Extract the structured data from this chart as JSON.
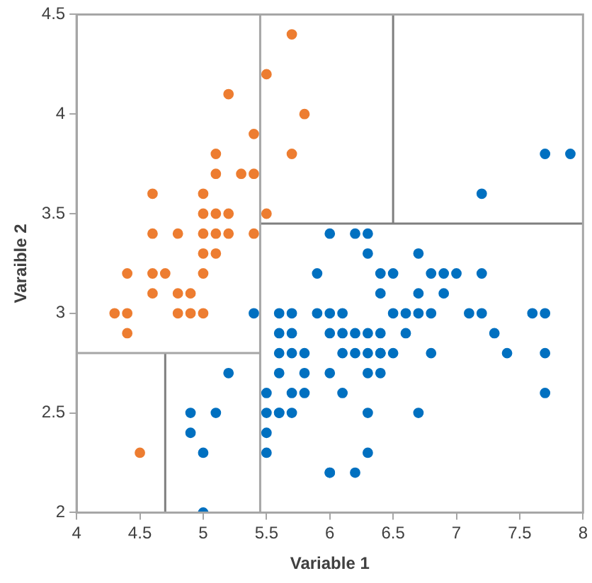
{
  "chart_data": {
    "type": "scatter",
    "xlabel": "Variable 1",
    "ylabel": "Varaible 2",
    "xlim": [
      4,
      8
    ],
    "ylim": [
      2,
      4.5
    ],
    "xticks": [
      4,
      4.5,
      5,
      5.5,
      6,
      6.5,
      7,
      7.5,
      8
    ],
    "yticks": [
      2,
      2.5,
      3,
      3.5,
      4,
      4.5
    ],
    "marker": "circle",
    "legend": false,
    "series": [
      {
        "color": "#ed7d31",
        "x": [
          4.3,
          4.4,
          4.4,
          4.4,
          4.5,
          4.6,
          4.6,
          4.6,
          4.6,
          4.7,
          4.8,
          4.8,
          4.8,
          4.9,
          4.9,
          5.0,
          5.0,
          5.0,
          5.0,
          5.0,
          5.0,
          5.1,
          5.1,
          5.1,
          5.1,
          5.1,
          5.2,
          5.2,
          5.2,
          5.3,
          5.4,
          5.4,
          5.4,
          5.5,
          5.5,
          5.7,
          5.7,
          5.8
        ],
        "values": [
          3.0,
          2.9,
          3.0,
          3.2,
          2.3,
          3.1,
          3.2,
          3.4,
          3.6,
          3.2,
          3.0,
          3.1,
          3.4,
          3.0,
          3.1,
          3.0,
          3.2,
          3.3,
          3.4,
          3.5,
          3.6,
          3.3,
          3.4,
          3.5,
          3.7,
          3.8,
          3.4,
          3.5,
          4.1,
          3.7,
          3.4,
          3.7,
          3.9,
          3.5,
          4.2,
          3.8,
          4.4,
          4.0
        ]
      },
      {
        "color": "#0070c0",
        "x": [
          4.9,
          4.9,
          5.0,
          5.0,
          5.1,
          5.2,
          5.4,
          5.5,
          5.5,
          5.5,
          5.5,
          5.6,
          5.6,
          5.6,
          5.6,
          5.6,
          5.6,
          5.7,
          5.7,
          5.7,
          5.7,
          5.7,
          5.8,
          5.8,
          5.8,
          5.9,
          5.9,
          6.0,
          6.0,
          6.0,
          6.0,
          6.0,
          6.0,
          6.1,
          6.1,
          6.1,
          6.1,
          6.2,
          6.2,
          6.2,
          6.2,
          6.3,
          6.3,
          6.3,
          6.3,
          6.3,
          6.3,
          6.3,
          6.4,
          6.4,
          6.4,
          6.4,
          6.4,
          6.4,
          6.5,
          6.5,
          6.5,
          6.6,
          6.6,
          6.7,
          6.7,
          6.7,
          6.7,
          6.8,
          6.8,
          6.8,
          6.9,
          6.9,
          7.0,
          7.1,
          7.2,
          7.2,
          7.2,
          7.3,
          7.4,
          7.6,
          7.7,
          7.7,
          7.7,
          7.7,
          7.9
        ],
        "values": [
          2.4,
          2.5,
          2.0,
          2.3,
          2.5,
          2.7,
          3.0,
          2.3,
          2.4,
          2.5,
          2.6,
          2.5,
          2.7,
          2.8,
          2.9,
          3.0,
          2.5,
          2.5,
          2.6,
          2.8,
          2.9,
          3.0,
          2.6,
          2.7,
          2.8,
          3.0,
          3.2,
          2.2,
          2.7,
          2.9,
          3.0,
          3.4,
          2.2,
          2.6,
          2.8,
          2.9,
          3.0,
          2.2,
          2.8,
          2.9,
          3.4,
          2.3,
          2.5,
          2.7,
          2.8,
          2.9,
          3.3,
          3.4,
          2.7,
          2.8,
          2.9,
          3.1,
          3.2,
          2.8,
          2.8,
          3.0,
          3.2,
          2.9,
          3.0,
          2.5,
          3.0,
          3.1,
          3.3,
          2.8,
          3.0,
          3.2,
          3.1,
          3.2,
          3.2,
          3.0,
          3.0,
          3.2,
          3.6,
          2.9,
          2.8,
          3.0,
          2.6,
          2.8,
          3.0,
          3.8,
          3.8
        ]
      },
      {
        "type": "line",
        "marker": "none",
        "color": "#a6a6a6",
        "x": [
          5.45,
          5.45
        ],
        "values": [
          2,
          4.5
        ]
      },
      {
        "type": "line",
        "marker": "none",
        "color": "#7f7f7f",
        "x": [
          5.45,
          8
        ],
        "values": [
          3.45,
          3.45
        ]
      },
      {
        "type": "line",
        "marker": "none",
        "color": "#7f7f7f",
        "x": [
          6.5,
          6.5
        ],
        "values": [
          3.45,
          4.5
        ]
      },
      {
        "type": "line",
        "marker": "none",
        "color": "#a6a6a6",
        "x": [
          4,
          5.45
        ],
        "values": [
          2.8,
          2.8
        ]
      },
      {
        "type": "line",
        "marker": "none",
        "color": "#7f7f7f",
        "x": [
          4.7,
          4.7
        ],
        "values": [
          2,
          2.8
        ]
      }
    ]
  }
}
